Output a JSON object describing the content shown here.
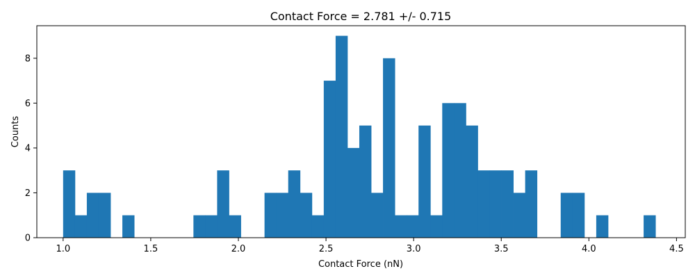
{
  "chart_data": {
    "type": "bar",
    "title": "Contact Force = 2.781 +/- 0.715",
    "xlabel": "Contact Force (nN)",
    "ylabel": "Counts",
    "xlim": [
      0.85,
      4.55
    ],
    "ylim": [
      0,
      9.45
    ],
    "xticks": [
      "1.0",
      "1.5",
      "2.0",
      "2.5",
      "3.0",
      "3.5",
      "4.0",
      "4.5"
    ],
    "yticks": [
      "0",
      "2",
      "4",
      "6",
      "8"
    ],
    "bar_color": "#1f77b4",
    "bin_start": 1.0,
    "bin_width": 0.0676,
    "counts": [
      3,
      1,
      2,
      2,
      0,
      1,
      0,
      0,
      0,
      0,
      0,
      1,
      1,
      3,
      1,
      0,
      0,
      2,
      2,
      3,
      2,
      1,
      7,
      9,
      4,
      5,
      2,
      8,
      1,
      1,
      5,
      1,
      6,
      6,
      5,
      3,
      3,
      3,
      2,
      3,
      0,
      0,
      2,
      2,
      0,
      1,
      0,
      0,
      0,
      1
    ],
    "grid": false
  }
}
